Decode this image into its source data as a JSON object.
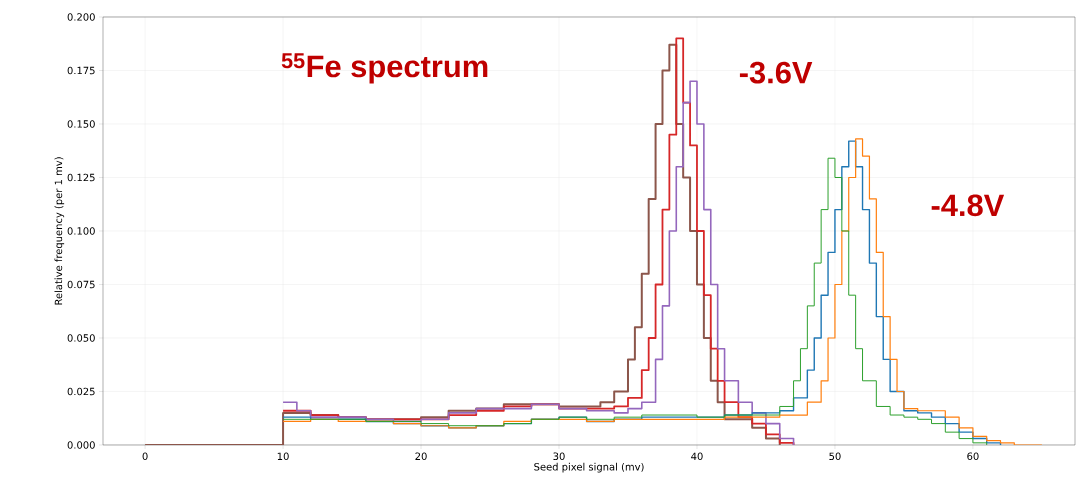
{
  "chart_data": {
    "type": "step",
    "xlabel": "Seed pixel signal (mv)",
    "ylabel": "Relative frequency (per 1 mv)",
    "xlim": [
      -3.05,
      67.4
    ],
    "ylim": [
      0,
      0.2
    ],
    "xticks": [
      0,
      10,
      20,
      30,
      40,
      50,
      60
    ],
    "yticks": [
      {
        "value": 0,
        "label": "0.000"
      },
      {
        "value": 0.025,
        "label": "0.025"
      },
      {
        "value": 0.05,
        "label": "0.050"
      },
      {
        "value": 0.075,
        "label": "0.075"
      },
      {
        "value": 0.1,
        "label": "0.100"
      },
      {
        "value": 0.125,
        "label": "0.125"
      },
      {
        "value": 0.15,
        "label": "0.150"
      },
      {
        "value": 0.175,
        "label": "0.175"
      },
      {
        "value": 0.2,
        "label": "0.200"
      }
    ],
    "grid": true,
    "line_style": "solid",
    "annotations": [
      "$^{55}$Fe spectrum",
      "-3.6V",
      "-4.8V"
    ],
    "series": [
      {
        "color": "#8c564b",
        "x": [
          0,
          10,
          12,
          14,
          16,
          18,
          20,
          22,
          24,
          26,
          28,
          30,
          32,
          33,
          34,
          35,
          35.5,
          36,
          36.5,
          37,
          37.5,
          38,
          38.5,
          39,
          39.5,
          40,
          40.5,
          41,
          41.5,
          42,
          43,
          44,
          45,
          46
        ],
        "values": [
          0,
          0.015,
          0.014,
          0.013,
          0.012,
          0.012,
          0.013,
          0.016,
          0.017,
          0.019,
          0.019,
          0.018,
          0.018,
          0.02,
          0.025,
          0.04,
          0.055,
          0.08,
          0.115,
          0.15,
          0.175,
          0.187,
          0.15,
          0.125,
          0.1,
          0.075,
          0.05,
          0.03,
          0.02,
          0.012,
          0.012,
          0.008,
          0.003,
          0
        ]
      },
      {
        "color": "#d62728",
        "x": [
          10,
          12,
          14,
          16,
          18,
          20,
          22,
          24,
          26,
          28,
          30,
          32,
          34,
          35,
          36,
          36.5,
          37,
          37.5,
          38,
          38.5,
          39,
          39.5,
          40,
          40.5,
          41,
          41.5,
          42,
          43,
          44,
          45,
          46,
          47
        ],
        "values": [
          0.016,
          0.014,
          0.013,
          0.012,
          0.012,
          0.012,
          0.014,
          0.016,
          0.018,
          0.019,
          0.017,
          0.017,
          0.018,
          0.022,
          0.035,
          0.05,
          0.075,
          0.11,
          0.145,
          0.19,
          0.16,
          0.14,
          0.1,
          0.07,
          0.045,
          0.03,
          0.02,
          0.013,
          0.01,
          0.005,
          0.001,
          0
        ]
      },
      {
        "color": "#9467bd",
        "x": [
          10,
          11,
          12,
          14,
          16,
          18,
          20,
          22,
          24,
          26,
          28,
          30,
          32,
          34,
          35,
          36,
          37,
          37.5,
          38,
          38.5,
          39,
          39.5,
          40,
          40.5,
          41,
          41.5,
          42,
          43,
          44,
          45,
          46,
          47
        ],
        "values": [
          0.02,
          0.016,
          0.013,
          0.013,
          0.012,
          0.011,
          0.012,
          0.015,
          0.017,
          0.017,
          0.019,
          0.017,
          0.016,
          0.015,
          0.017,
          0.02,
          0.04,
          0.065,
          0.1,
          0.13,
          0.16,
          0.17,
          0.15,
          0.11,
          0.075,
          0.045,
          0.03,
          0.02,
          0.015,
          0.01,
          0.003,
          0
        ]
      },
      {
        "color": "#1f77b4",
        "x": [
          10,
          12,
          14,
          16,
          18,
          20,
          22,
          24,
          26,
          28,
          30,
          32,
          34,
          36,
          38,
          40,
          42,
          44,
          46,
          47,
          48,
          48.5,
          49,
          49.5,
          50,
          50.5,
          51,
          51.5,
          52,
          52.5,
          53,
          53.5,
          54,
          55,
          56,
          57,
          58,
          59,
          60,
          61,
          62
        ],
        "values": [
          0.013,
          0.012,
          0.012,
          0.011,
          0.01,
          0.009,
          0.008,
          0.009,
          0.01,
          0.012,
          0.013,
          0.011,
          0.012,
          0.013,
          0.013,
          0.013,
          0.014,
          0.015,
          0.016,
          0.022,
          0.035,
          0.05,
          0.07,
          0.09,
          0.11,
          0.13,
          0.142,
          0.13,
          0.11,
          0.085,
          0.06,
          0.04,
          0.025,
          0.016,
          0.015,
          0.013,
          0.01,
          0.006,
          0.003,
          0.001,
          0
        ]
      },
      {
        "color": "#ff7f0e",
        "x": [
          10,
          12,
          14,
          16,
          18,
          20,
          22,
          24,
          26,
          28,
          30,
          32,
          34,
          36,
          38,
          40,
          42,
          44,
          46,
          48,
          49,
          49.5,
          50,
          50.5,
          51,
          51.5,
          52,
          52.5,
          53,
          53.5,
          54,
          54.5,
          55,
          56,
          57,
          58,
          59,
          60,
          61,
          62,
          63,
          65
        ],
        "values": [
          0.011,
          0.012,
          0.011,
          0.011,
          0.01,
          0.009,
          0.008,
          0.009,
          0.011,
          0.012,
          0.012,
          0.011,
          0.012,
          0.012,
          0.012,
          0.012,
          0.013,
          0.013,
          0.014,
          0.02,
          0.03,
          0.05,
          0.075,
          0.1,
          0.125,
          0.143,
          0.135,
          0.115,
          0.09,
          0.06,
          0.04,
          0.025,
          0.017,
          0.016,
          0.016,
          0.013,
          0.008,
          0.004,
          0.002,
          0.001,
          0,
          0
        ]
      },
      {
        "color": "#2ca02c",
        "x": [
          10,
          12,
          14,
          16,
          18,
          20,
          22,
          24,
          26,
          28,
          30,
          32,
          34,
          36,
          38,
          40,
          42,
          44,
          46,
          47,
          47.5,
          48,
          48.5,
          49,
          49.5,
          50,
          50.5,
          51,
          51.5,
          52,
          53,
          54,
          55,
          56,
          57,
          58,
          59,
          60,
          61
        ],
        "values": [
          0.012,
          0.012,
          0.012,
          0.011,
          0.011,
          0.01,
          0.009,
          0.009,
          0.01,
          0.012,
          0.013,
          0.012,
          0.013,
          0.014,
          0.014,
          0.013,
          0.014,
          0.014,
          0.018,
          0.03,
          0.045,
          0.065,
          0.085,
          0.11,
          0.134,
          0.125,
          0.1,
          0.07,
          0.045,
          0.03,
          0.018,
          0.014,
          0.013,
          0.012,
          0.01,
          0.006,
          0.003,
          0.001,
          0
        ]
      }
    ]
  }
}
